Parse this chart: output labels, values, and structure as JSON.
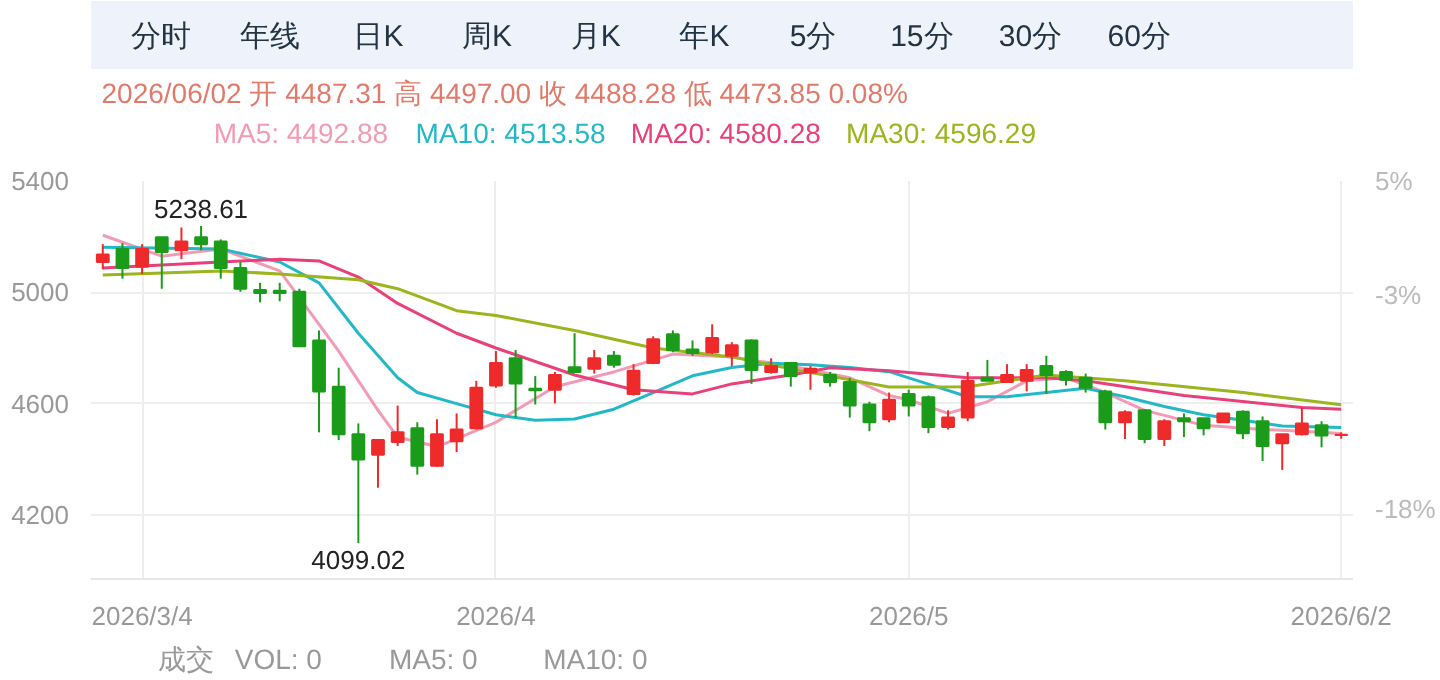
{
  "chart_data": {
    "type": "candlestick",
    "categories": [
      null,
      null,
      "2026/3/4",
      null,
      null,
      null,
      null,
      null,
      null,
      null,
      null,
      null,
      null,
      null,
      null,
      null,
      null,
      null,
      null,
      null,
      "2026/4",
      null,
      null,
      null,
      null,
      null,
      null,
      null,
      null,
      null,
      null,
      null,
      null,
      null,
      null,
      null,
      null,
      null,
      null,
      null,
      null,
      "2026/5",
      null,
      null,
      null,
      null,
      null,
      null,
      null,
      null,
      null,
      null,
      null,
      null,
      null,
      null,
      null,
      null,
      null,
      null,
      null,
      null,
      null,
      "2026/6/2"
    ],
    "ohlc": [
      [
        5109,
        5173,
        5083,
        5136
      ],
      [
        5156,
        5177,
        5049,
        5087
      ],
      [
        5092,
        5173,
        5066,
        5156
      ],
      [
        5198,
        5198,
        5013,
        5145
      ],
      [
        5151,
        5233,
        5119,
        5183
      ],
      [
        5198,
        5238.61,
        5151,
        5173
      ],
      [
        5183,
        5190,
        5049,
        5087
      ],
      [
        5087,
        5109,
        5002,
        5013
      ],
      [
        5008,
        5034,
        4964,
        4998
      ],
      [
        5006,
        5034,
        4968,
        4998
      ],
      [
        5002,
        5013,
        4806,
        4806
      ],
      [
        4827,
        4863,
        4497,
        4644
      ],
      [
        4661,
        4729,
        4469,
        4490
      ],
      [
        4490,
        4529,
        4099.02,
        4399
      ],
      [
        4416,
        4469,
        4298,
        4469
      ],
      [
        4462,
        4593,
        4448,
        4497
      ],
      [
        4512,
        4533,
        4345,
        4377
      ],
      [
        4377,
        4544,
        4373,
        4490
      ],
      [
        4465,
        4565,
        4426,
        4507
      ],
      [
        4512,
        4682,
        4507,
        4657
      ],
      [
        4665,
        4789,
        4657,
        4746
      ],
      [
        4763,
        4793,
        4550,
        4672
      ],
      [
        4654,
        4699,
        4597,
        4648
      ],
      [
        4650,
        4714,
        4601,
        4703
      ],
      [
        4731,
        4853,
        4714,
        4714
      ],
      [
        4725,
        4793,
        4708,
        4763
      ],
      [
        4772,
        4789,
        4729,
        4740
      ],
      [
        4635,
        4742,
        4629,
        4718
      ],
      [
        4746,
        4842,
        4742,
        4831
      ],
      [
        4849,
        4863,
        4785,
        4793
      ],
      [
        4795,
        4827,
        4772,
        4782
      ],
      [
        4785,
        4885,
        4778,
        4836
      ],
      [
        4772,
        4821,
        4735,
        4810
      ],
      [
        4827,
        4831,
        4671,
        4721
      ],
      [
        4714,
        4763,
        4708,
        4735
      ],
      [
        4746,
        4750,
        4661,
        4699
      ],
      [
        4712,
        4735,
        4650,
        4725
      ],
      [
        4703,
        4714,
        4661,
        4678
      ],
      [
        4678,
        4693,
        4550,
        4593
      ],
      [
        4597,
        4607,
        4501,
        4533
      ],
      [
        4544,
        4640,
        4533,
        4614
      ],
      [
        4635,
        4650,
        4554,
        4593
      ],
      [
        4623,
        4629,
        4494,
        4516
      ],
      [
        4516,
        4576,
        4507,
        4550
      ],
      [
        4550,
        4714,
        4537,
        4682
      ],
      [
        4693,
        4757,
        4682,
        4682
      ],
      [
        4678,
        4742,
        4678,
        4703
      ],
      [
        4682,
        4742,
        4644,
        4721
      ],
      [
        4735,
        4772,
        4635,
        4703
      ],
      [
        4714,
        4720,
        4665,
        4686
      ],
      [
        4693,
        4708,
        4640,
        4657
      ],
      [
        4644,
        4650,
        4507,
        4533
      ],
      [
        4533,
        4576,
        4473,
        4569
      ],
      [
        4576,
        4580,
        4458,
        4473
      ],
      [
        4473,
        4544,
        4448,
        4537
      ],
      [
        4548,
        4565,
        4480,
        4537
      ],
      [
        4548,
        4548,
        4486,
        4512
      ],
      [
        4533,
        4565,
        4533,
        4565
      ],
      [
        4571,
        4576,
        4473,
        4494
      ],
      [
        4537,
        4554,
        4394,
        4448
      ],
      [
        4458,
        4490,
        4362,
        4490
      ],
      [
        4490,
        4586,
        4486,
        4529
      ],
      [
        4522,
        4537,
        4443,
        4486
      ],
      [
        4487.31,
        4497.0,
        4473.85,
        4488.28
      ]
    ],
    "colors": [
      "#ee2a2a",
      "#1a9c1a",
      "#ee2a2a",
      "#1a9c1a",
      "#ee2a2a",
      "#1a9c1a",
      "#1a9c1a",
      "#1a9c1a",
      "#1a9c1a",
      "#1a9c1a",
      "#1a9c1a",
      "#1a9c1a",
      "#1a9c1a",
      "#1a9c1a",
      "#ee2a2a",
      "#ee2a2a",
      "#1a9c1a",
      "#ee2a2a",
      "#ee2a2a",
      "#ee2a2a",
      "#ee2a2a",
      "#1a9c1a",
      "#1a9c1a",
      "#ee2a2a",
      "#1a9c1a",
      "#ee2a2a",
      "#1a9c1a",
      "#ee2a2a",
      "#ee2a2a",
      "#1a9c1a",
      "#1a9c1a",
      "#ee2a2a",
      "#ee2a2a",
      "#1a9c1a",
      "#ee2a2a",
      "#1a9c1a",
      "#ee2a2a",
      "#1a9c1a",
      "#1a9c1a",
      "#1a9c1a",
      "#ee2a2a",
      "#1a9c1a",
      "#1a9c1a",
      "#ee2a2a",
      "#ee2a2a",
      "#1a9c1a",
      "#ee2a2a",
      "#ee2a2a",
      "#1a9c1a",
      "#1a9c1a",
      "#1a9c1a",
      "#1a9c1a",
      "#ee2a2a",
      "#1a9c1a",
      "#ee2a2a",
      "#1a9c1a",
      "#1a9c1a",
      "#ee2a2a",
      "#1a9c1a",
      "#1a9c1a",
      "#ee2a2a",
      "#ee2a2a",
      "#1a9c1a",
      "#ee2a2a"
    ],
    "series": [
      {
        "type": "line",
        "name": "MA5: 4492.88",
        "color": "#f29bb5",
        "values": [
          5205,
          null,
          null,
          5130,
          null,
          null,
          5156,
          null,
          null,
          5077,
          null,
          null,
          4789,
          null,
          4576,
          4480,
          null,
          4445,
          null,
          null,
          4533,
          null,
          null,
          4661,
          null,
          null,
          4714,
          null,
          null,
          4778,
          null,
          null,
          4768,
          null,
          null,
          4735,
          null,
          null,
          4693,
          null,
          4629,
          4614,
          null,
          4565,
          null,
          4607,
          null,
          4682,
          null,
          4693,
          null,
          4640,
          null,
          4576,
          null,
          null,
          4522,
          null,
          null,
          4507,
          null,
          4501,
          null,
          4493
        ]
      },
      {
        "type": "line",
        "name": "MA10: 4513.58",
        "color": "#22b8c8",
        "values": [
          5162,
          null,
          null,
          null,
          null,
          null,
          5156,
          null,
          null,
          5109,
          null,
          5034,
          null,
          4853,
          null,
          4693,
          4640,
          null,
          4600,
          null,
          4560,
          null,
          4540,
          null,
          4545,
          null,
          4580,
          null,
          4640,
          null,
          4700,
          null,
          4730,
          null,
          4745,
          null,
          4740,
          null,
          4730,
          null,
          4715,
          null,
          4670,
          null,
          4625,
          null,
          4625,
          null,
          4640,
          null,
          4655,
          null,
          4625,
          null,
          4590,
          null,
          4560,
          null,
          4540,
          null,
          4520,
          null,
          null,
          4514
        ]
      },
      {
        "type": "line",
        "name": "MA20: 4580.28",
        "color": "#e8407a",
        "values": [
          5087,
          null,
          null,
          null,
          null,
          null,
          5109,
          null,
          null,
          5119,
          null,
          5113,
          null,
          5055,
          null,
          4960,
          null,
          null,
          4853,
          null,
          4800,
          null,
          null,
          null,
          4703,
          null,
          null,
          4650,
          null,
          null,
          4635,
          null,
          4671,
          null,
          null,
          4703,
          null,
          4729,
          null,
          null,
          4718,
          null,
          null,
          null,
          4693,
          null,
          null,
          null,
          4693,
          null,
          4682,
          null,
          null,
          null,
          null,
          4629,
          null,
          null,
          null,
          null,
          null,
          4586,
          null,
          4580
        ]
      },
      {
        "type": "line",
        "name": "MA30: 4596.29",
        "color": "#9ab51e",
        "values": [
          5062,
          null,
          null,
          null,
          null,
          null,
          5077,
          null,
          null,
          5066,
          null,
          null,
          null,
          5045,
          null,
          5013,
          null,
          null,
          4934,
          null,
          4917,
          null,
          null,
          null,
          4863,
          null,
          null,
          null,
          4800,
          null,
          null,
          null,
          4768,
          null,
          null,
          4725,
          null,
          null,
          null,
          null,
          4660,
          null,
          null,
          null,
          4661,
          null,
          null,
          null,
          4703,
          null,
          null,
          null,
          4682,
          null,
          null,
          null,
          null,
          null,
          4640,
          null,
          null,
          null,
          null,
          4596
        ]
      }
    ],
    "ylim": [
      3970,
      5400
    ],
    "yticks": [
      4200,
      4600,
      5000,
      5400
    ],
    "y2lim": [
      -22.9,
      5
    ],
    "y2ticks": [
      {
        "value": 5,
        "label": "5%"
      },
      {
        "value": -3,
        "label": "-3%"
      },
      {
        "value": -18,
        "label": "-18%"
      }
    ],
    "grid": true,
    "legend": "top",
    "annotations": [
      "分时",
      "年线",
      "日K",
      "周K",
      "月K",
      "年K",
      "5分",
      "15分",
      "30分",
      "60分",
      "2026/06/02 开 4487.31 高 4497.00 收 4488.28 低 4473.85 0.08%",
      "成交",
      "VOL: 0",
      "MA5: 0",
      "MA10: 0",
      {
        "text": "5238.61",
        "y": 5238.61
      },
      {
        "text": "4099.02",
        "y": 4099.02
      }
    ]
  }
}
